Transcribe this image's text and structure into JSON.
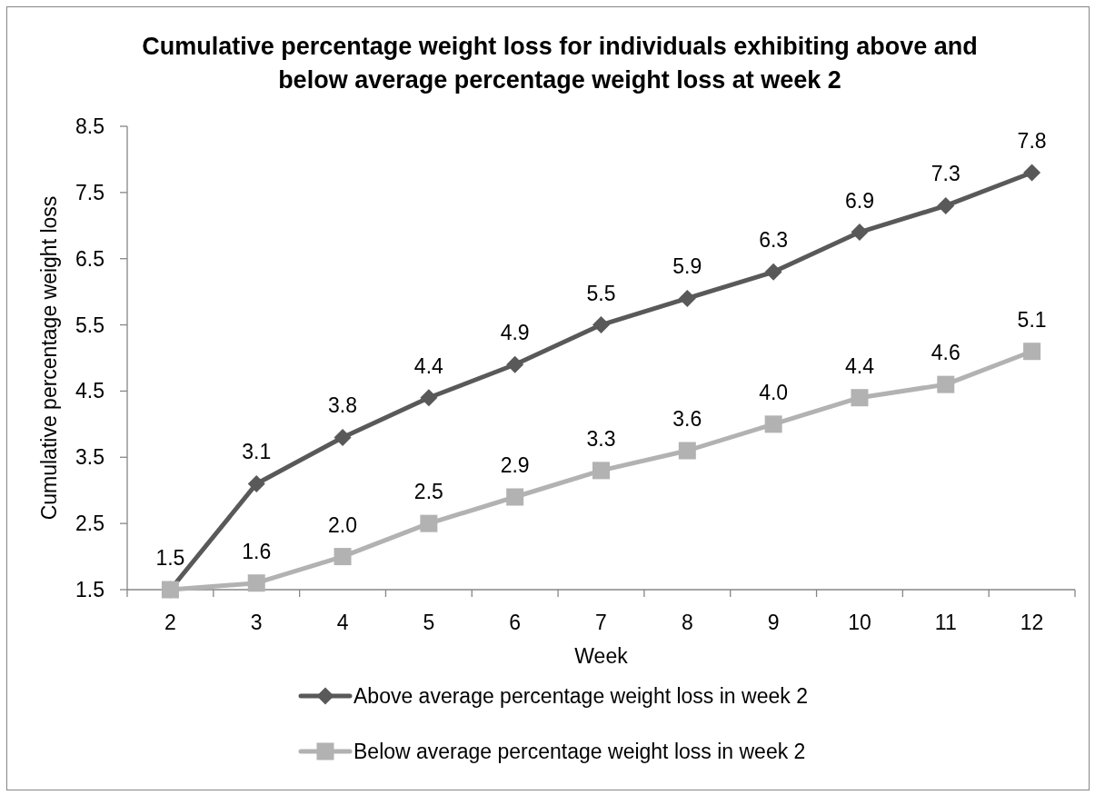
{
  "chart_data": {
    "type": "line",
    "title": "Cumulative percentage weight loss for individuals exhibiting above and below average percentage weight loss at week 2",
    "xlabel": "Week",
    "ylabel": "Cumulative percentage weight loss",
    "categories": [
      "2",
      "3",
      "4",
      "5",
      "6",
      "7",
      "8",
      "9",
      "10",
      "11",
      "12"
    ],
    "series": [
      {
        "name": "Above average percentage weight loss in week 2",
        "color": "#595959",
        "marker": "diamond",
        "values": [
          1.5,
          3.1,
          3.8,
          4.4,
          4.9,
          5.5,
          5.9,
          6.3,
          6.9,
          7.3,
          7.8
        ],
        "value_labels": [
          "1.5",
          "3.1",
          "3.8",
          "4.4",
          "4.9",
          "5.5",
          "5.9",
          "6.3",
          "6.9",
          "7.3",
          "7.8"
        ]
      },
      {
        "name": "Below average percentage weight loss in week 2",
        "color": "#b2b2b2",
        "marker": "square",
        "values": [
          1.5,
          1.6,
          2.0,
          2.5,
          2.9,
          3.3,
          3.6,
          4.0,
          4.4,
          4.6,
          5.1
        ],
        "value_labels": [
          null,
          "1.6",
          "2.0",
          "2.5",
          "2.9",
          "3.3",
          "3.6",
          "4.0",
          "4.4",
          "4.6",
          "5.1"
        ]
      }
    ],
    "ylim": [
      1.5,
      8.5
    ],
    "yticks": [
      1.5,
      2.5,
      3.5,
      4.5,
      5.5,
      6.5,
      7.5,
      8.5
    ],
    "legend": "bottom"
  }
}
